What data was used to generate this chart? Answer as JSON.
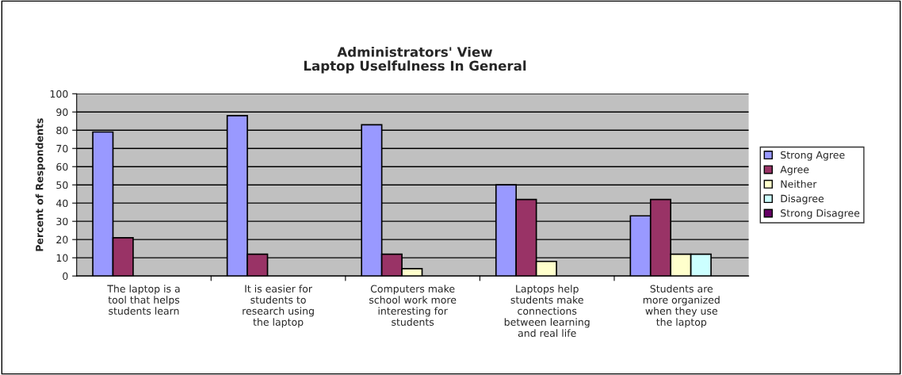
{
  "chart_data": {
    "type": "bar",
    "title": "Administrators' View\nLaptop Uselfulness In General",
    "ylabel": "Percent of Respondents",
    "categories": [
      "The laptop is a\ntool that helps\nstudents learn",
      "It is easier for\nstudents to\nresearch using\nthe laptop",
      "Computers make\nschool work more\ninteresting for\nstudents",
      "Laptops help\nstudents make\nconnections\nbetween learning\nand real life",
      "Students are\nmore organized\nwhen they use\nthe laptop"
    ],
    "series": [
      {
        "name": "Strong Agree",
        "color": "#9999ff",
        "values": [
          79,
          88,
          83,
          50,
          33
        ]
      },
      {
        "name": "Agree",
        "color": "#993366",
        "values": [
          21,
          12,
          12,
          42,
          42
        ]
      },
      {
        "name": "Neither",
        "color": "#ffffcc",
        "values": [
          0,
          0,
          4,
          8,
          12
        ]
      },
      {
        "name": "Disagree",
        "color": "#ccffff",
        "values": [
          0,
          0,
          0,
          0,
          12
        ]
      },
      {
        "name": "Strong Disagree",
        "color": "#660066",
        "values": [
          0,
          0,
          0,
          0,
          0
        ]
      }
    ],
    "ylim": [
      0,
      100
    ],
    "yticks": [
      0,
      10,
      20,
      30,
      40,
      50,
      60,
      70,
      80,
      90,
      100
    ],
    "grid": "y",
    "legend": "right"
  }
}
